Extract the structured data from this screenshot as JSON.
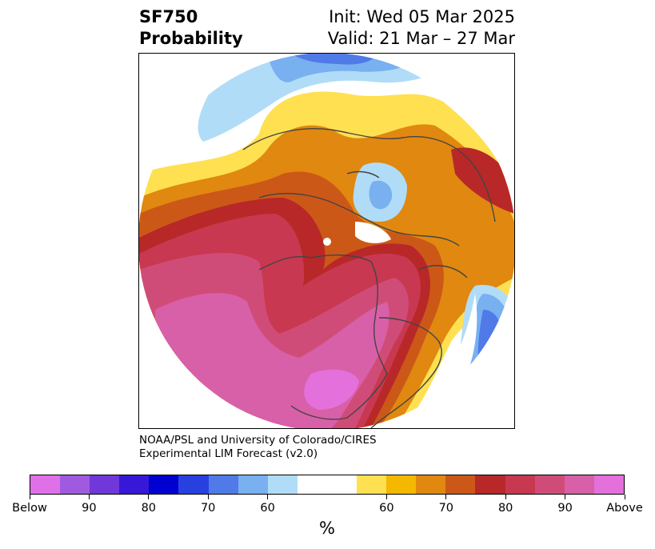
{
  "title": {
    "variable": "SF750",
    "metric": "Probability",
    "init": "Init: Wed 05 Mar 2025",
    "valid": "Valid: 21 Mar – 27 Mar"
  },
  "credit": {
    "line1": "NOAA/PSL and University of Colorado/CIRES",
    "line2": "Experimental LIM Forecast (v2.0)"
  },
  "colorbar": {
    "colors": [
      "#e070e8",
      "#a05ae0",
      "#7038d8",
      "#3818d8",
      "#0000d0",
      "#2840e0",
      "#4f7ae8",
      "#78b0f0",
      "#b0dcf8",
      "#ffffff",
      "#ffe050",
      "#f4b800",
      "#e08810",
      "#cc5818",
      "#b82828",
      "#c83850",
      "#d04c78",
      "#d860a8",
      "#e470dc"
    ],
    "tick_labels": [
      "Below",
      "90",
      "80",
      "70",
      "60",
      "60",
      "70",
      "80",
      "90",
      "Above"
    ],
    "unit": "%"
  },
  "map": {
    "projection": "north-polar-stereographic",
    "palette": {
      "above_60": "#ffe050",
      "above_65": "#f4b800",
      "above_70": "#e08810",
      "above_75": "#cc5818",
      "above_80": "#b82828",
      "above_85": "#c83850",
      "above_90": "#d04c78",
      "above_95": "#d860a8",
      "above_max": "#e470dc",
      "below_60": "#b0dcf8",
      "below_65": "#78b0f0",
      "below_70": "#4f7ae8",
      "below_75": "#2840e0",
      "coast": "#444444"
    }
  }
}
